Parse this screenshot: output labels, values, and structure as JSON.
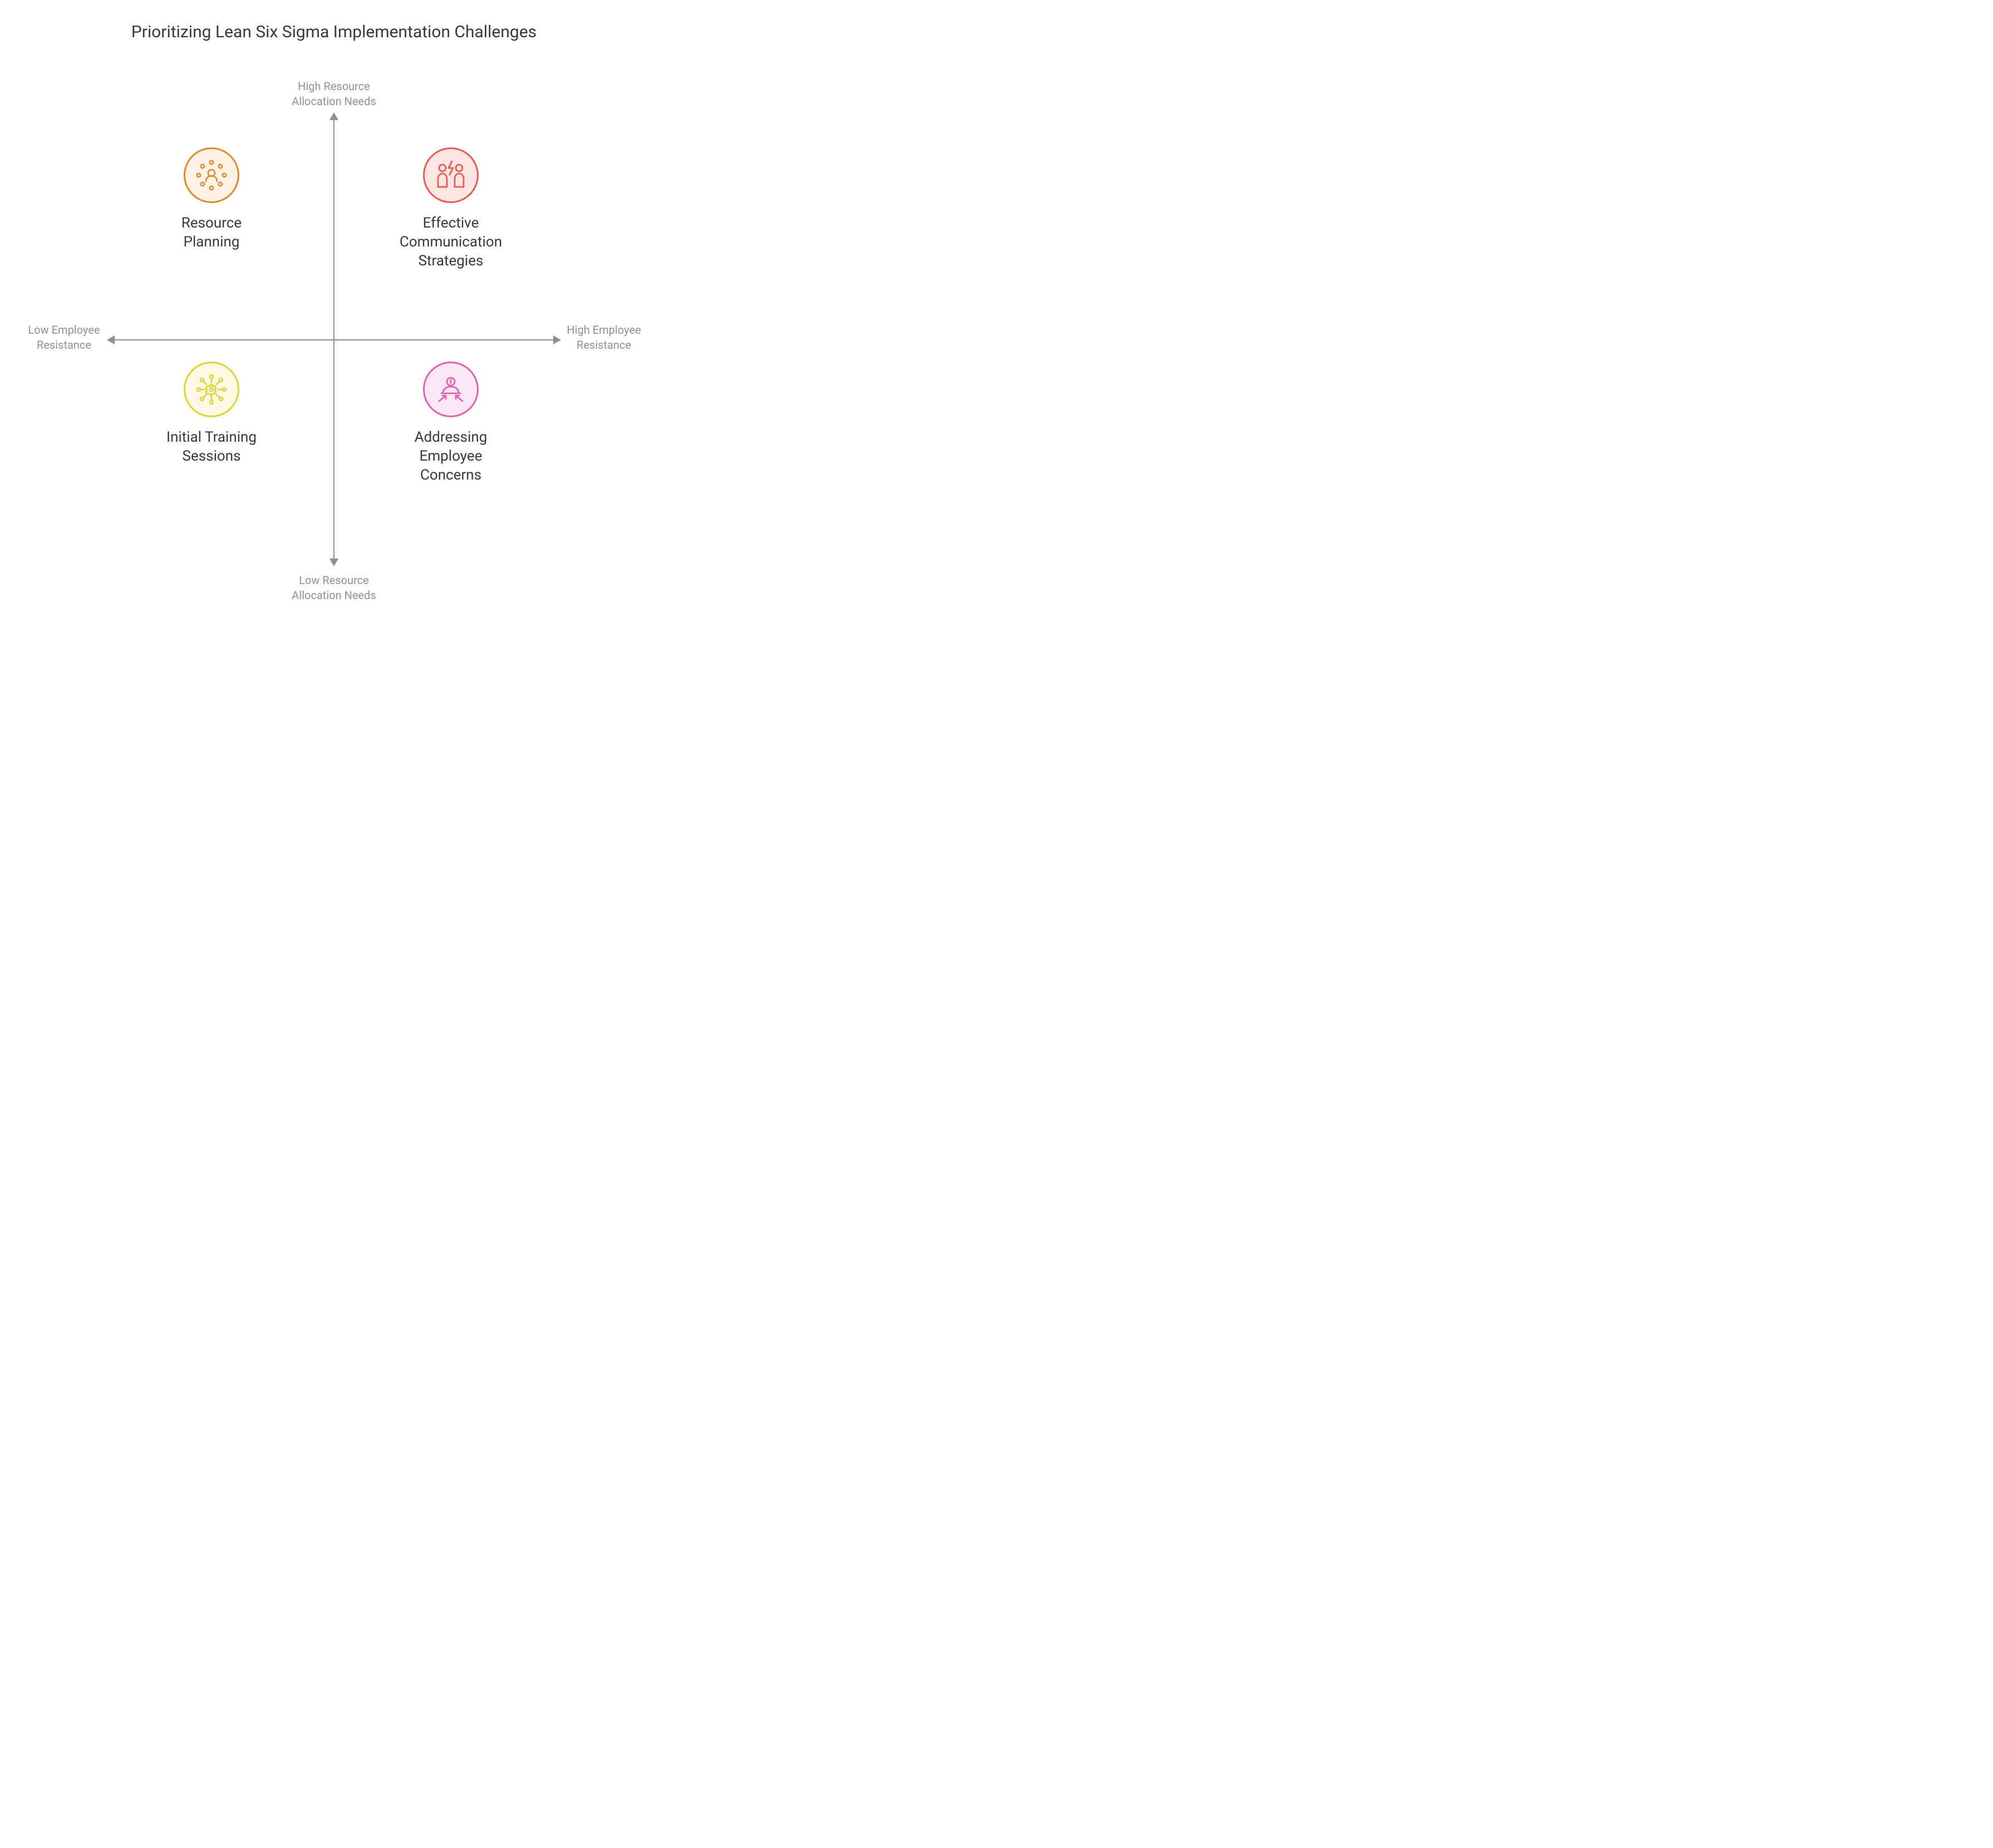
{
  "type": "quadrant-matrix",
  "title": "Prioritizing Lean Six Sigma Implementation Challenges",
  "background_color": "#ffffff",
  "title_color": "#37393b",
  "title_fontsize": 30,
  "axis_color": "#8a8f93",
  "axis_label_color": "#8e9397",
  "axis_label_fontsize": 20,
  "quad_label_color": "#37393b",
  "quad_label_fontsize": 26,
  "axes": {
    "x": {
      "low_label": "Low Employee\nResistance",
      "high_label": "High Employee\nResistance"
    },
    "y": {
      "low_label": "Low Resource\nAllocation Needs",
      "high_label": "High Resource\nAllocation Needs"
    }
  },
  "quadrants": {
    "top_left": {
      "label": "Resource\nPlanning",
      "icon_name": "network-user-icon",
      "stroke_color": "#e08a2a",
      "fill_color": "#fdf2e5"
    },
    "top_right": {
      "label": "Effective\nCommunication\nStrategies",
      "icon_name": "people-bolt-icon",
      "stroke_color": "#e85b52",
      "fill_color": "#fbe6e4"
    },
    "bottom_left": {
      "label": "Initial Training\nSessions",
      "icon_name": "hub-gear-icon",
      "stroke_color": "#e3d22f",
      "fill_color": "#fcfae6"
    },
    "bottom_right": {
      "label": "Addressing\nEmployee\nConcerns",
      "icon_name": "person-focus-icon",
      "stroke_color": "#e35fb5",
      "fill_color": "#fbe8f5"
    }
  },
  "icon_circle_diameter": 100,
  "icon_border_width": 3
}
